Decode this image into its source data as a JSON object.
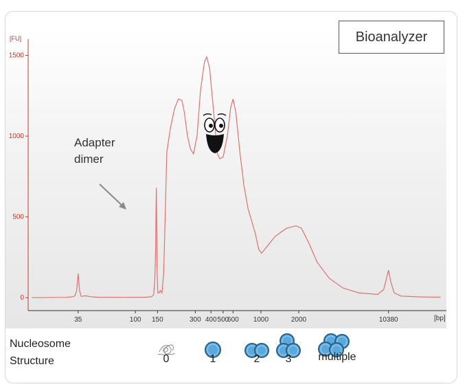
{
  "instrument_label": "Bioanalyzer",
  "annotation": {
    "line1": "Adapter",
    "line2": "dimer"
  },
  "nucleosome": {
    "label_line1": "Nucleosome",
    "label_line2": "Structure",
    "categories": [
      "0",
      "1",
      "2",
      "3",
      "multiple"
    ]
  },
  "colors": {
    "trace": "#e07070",
    "nucleosome_fill": "#5aa9dc",
    "nucleosome_edge": "#2b5f87"
  },
  "chart_data": {
    "type": "line",
    "title": "",
    "xlabel": "[bp]",
    "ylabel": "[FU]",
    "ylim": [
      -80,
      1600
    ],
    "x_scale": "log",
    "xlim": [
      14,
      30000
    ],
    "x_ticks": [
      35,
      100,
      150,
      300,
      400,
      500,
      600,
      1000,
      2000,
      10380
    ],
    "y_ticks": [
      0,
      500,
      1000,
      1500
    ],
    "grid": false,
    "series": [
      {
        "name": "",
        "points": [
          [
            15,
            0
          ],
          [
            28,
            2
          ],
          [
            32,
            6
          ],
          [
            33,
            12
          ],
          [
            34,
            40
          ],
          [
            35,
            150
          ],
          [
            36,
            40
          ],
          [
            37,
            8
          ],
          [
            40,
            12
          ],
          [
            44,
            6
          ],
          [
            50,
            3
          ],
          [
            80,
            2
          ],
          [
            120,
            3
          ],
          [
            135,
            6
          ],
          [
            140,
            20
          ],
          [
            143,
            120
          ],
          [
            145,
            300
          ],
          [
            146,
            550
          ],
          [
            147,
            680
          ],
          [
            148,
            420
          ],
          [
            149,
            150
          ],
          [
            151,
            30
          ],
          [
            155,
            30
          ],
          [
            158,
            45
          ],
          [
            163,
            30
          ],
          [
            168,
            150
          ],
          [
            172,
            450
          ],
          [
            178,
            900
          ],
          [
            190,
            1050
          ],
          [
            205,
            1170
          ],
          [
            220,
            1230
          ],
          [
            235,
            1220
          ],
          [
            245,
            1150
          ],
          [
            260,
            1000
          ],
          [
            275,
            920
          ],
          [
            290,
            890
          ],
          [
            310,
            1000
          ],
          [
            330,
            1280
          ],
          [
            355,
            1460
          ],
          [
            370,
            1490
          ],
          [
            390,
            1420
          ],
          [
            420,
            1150
          ],
          [
            450,
            890
          ],
          [
            470,
            860
          ],
          [
            500,
            870
          ],
          [
            540,
            1000
          ],
          [
            575,
            1180
          ],
          [
            600,
            1230
          ],
          [
            630,
            1150
          ],
          [
            680,
            900
          ],
          [
            730,
            700
          ],
          [
            790,
            550
          ],
          [
            840,
            480
          ],
          [
            900,
            400
          ],
          [
            960,
            300
          ],
          [
            1010,
            275
          ],
          [
            1100,
            310
          ],
          [
            1300,
            380
          ],
          [
            1600,
            430
          ],
          [
            1900,
            445
          ],
          [
            2100,
            430
          ],
          [
            2400,
            340
          ],
          [
            2800,
            220
          ],
          [
            3500,
            120
          ],
          [
            4500,
            60
          ],
          [
            6000,
            30
          ],
          [
            8500,
            20
          ],
          [
            9500,
            50
          ],
          [
            10000,
            120
          ],
          [
            10380,
            170
          ],
          [
            10800,
            100
          ],
          [
            11500,
            30
          ],
          [
            13000,
            10
          ],
          [
            18000,
            5
          ],
          [
            27000,
            3
          ]
        ]
      }
    ]
  }
}
